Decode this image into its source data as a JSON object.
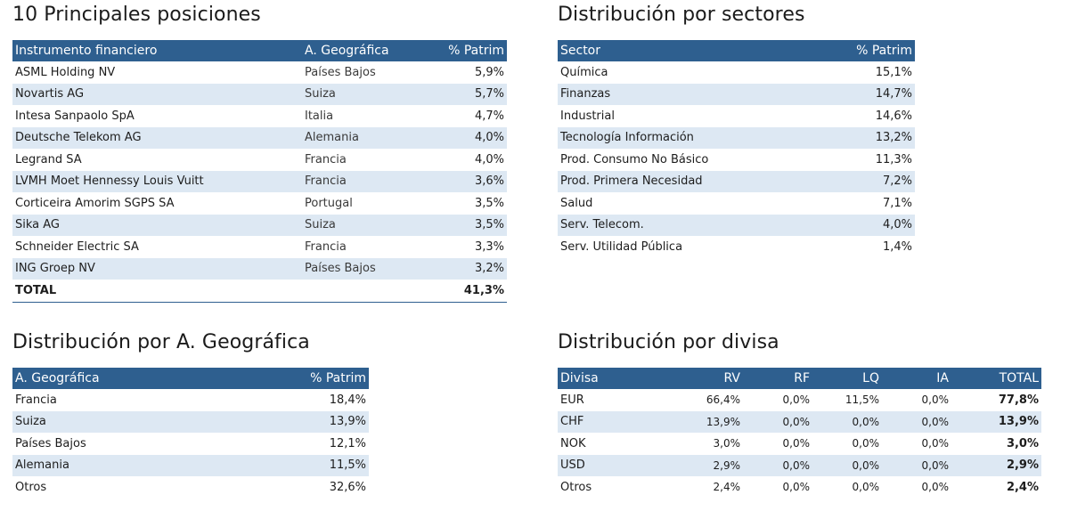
{
  "top10": {
    "title": "10 Principales posiciones",
    "headers": [
      "Instrumento financiero",
      "A. Geográfica",
      "% Patrim"
    ],
    "rows": [
      [
        "ASML Holding NV",
        "Países Bajos",
        "5,9%"
      ],
      [
        "Novartis AG",
        "Suiza",
        "5,7%"
      ],
      [
        "Intesa Sanpaolo SpA",
        "Italia",
        "4,7%"
      ],
      [
        "Deutsche Telekom AG",
        "Alemania",
        "4,0%"
      ],
      [
        "Legrand SA",
        "Francia",
        "4,0%"
      ],
      [
        "LVMH Moet Hennessy Louis Vuitt",
        "Francia",
        "3,6%"
      ],
      [
        "Corticeira Amorim SGPS SA",
        "Portugal",
        "3,5%"
      ],
      [
        "Sika AG",
        "Suiza",
        "3,5%"
      ],
      [
        "Schneider Electric SA",
        "Francia",
        "3,3%"
      ],
      [
        "ING Groep NV",
        "Países Bajos",
        "3,2%"
      ]
    ],
    "total_label": "TOTAL",
    "total_value": "41,3%"
  },
  "sectors": {
    "title": "Distribución por sectores",
    "headers": [
      "Sector",
      "% Patrim"
    ],
    "rows": [
      [
        "Química",
        "15,1%"
      ],
      [
        "Finanzas",
        "14,7%"
      ],
      [
        "Industrial",
        "14,6%"
      ],
      [
        "Tecnología Información",
        "13,2%"
      ],
      [
        "Prod. Consumo No Básico",
        "11,3%"
      ],
      [
        "Prod. Primera Necesidad",
        "7,2%"
      ],
      [
        "Salud",
        "7,1%"
      ],
      [
        "Serv. Telecom.",
        "4,0%"
      ],
      [
        "Serv. Utilidad Pública",
        "1,4%"
      ]
    ]
  },
  "geo": {
    "title": "Distribución por A. Geográfica",
    "headers": [
      "A. Geográfica",
      "% Patrim"
    ],
    "rows": [
      [
        "Francia",
        "18,4%"
      ],
      [
        "Suiza",
        "13,9%"
      ],
      [
        "Países Bajos",
        "12,1%"
      ],
      [
        "Alemania",
        "11,5%"
      ],
      [
        "Otros",
        "32,6%"
      ]
    ]
  },
  "currency": {
    "title": "Distribución por divisa",
    "headers": [
      "Divisa",
      "RV",
      "RF",
      "LQ",
      "IA",
      "TOTAL"
    ],
    "rows": [
      [
        "EUR",
        "66,4%",
        "0,0%",
        "11,5%",
        "0,0%",
        "77,8%"
      ],
      [
        "CHF",
        "13,9%",
        "0,0%",
        "0,0%",
        "0,0%",
        "13,9%"
      ],
      [
        "NOK",
        "3,0%",
        "0,0%",
        "0,0%",
        "0,0%",
        "3,0%"
      ],
      [
        "USD",
        "2,9%",
        "0,0%",
        "0,0%",
        "0,0%",
        "2,9%"
      ],
      [
        "Otros",
        "2,4%",
        "0,0%",
        "0,0%",
        "0,0%",
        "2,4%"
      ]
    ]
  },
  "colors": {
    "header_bg": "#2e5f8f",
    "stripe_bg": "#dde8f3"
  }
}
